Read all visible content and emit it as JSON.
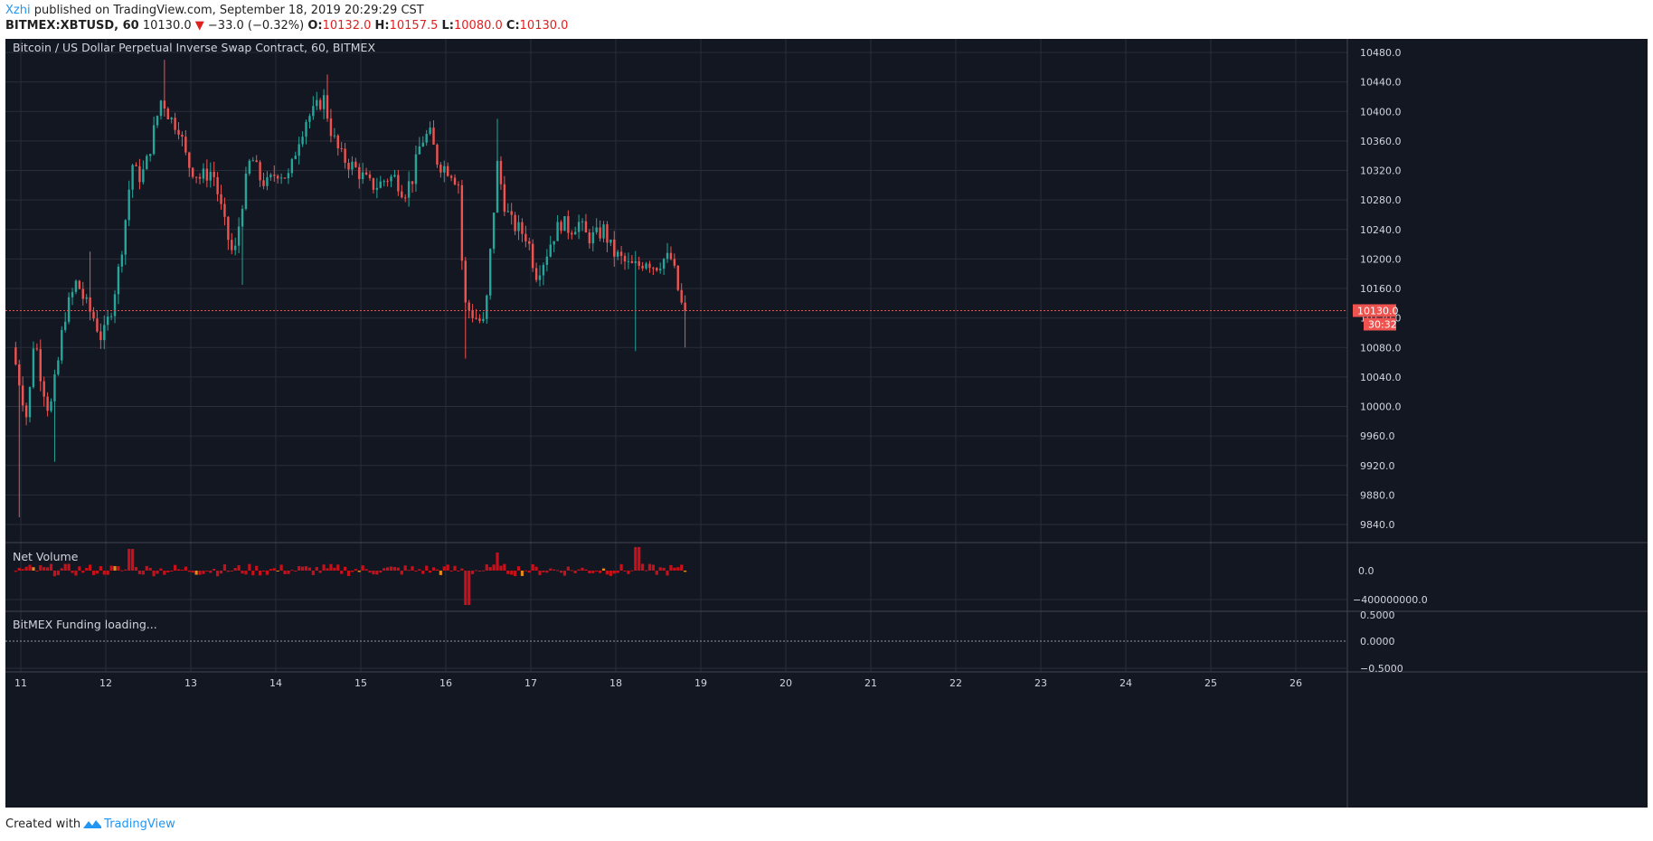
{
  "header": {
    "author": "Xzhi",
    "published_text": "published on TradingView.com, September 18, 2019 20:29:29 CST"
  },
  "ohlc": {
    "symbol": "BITMEX:XBTUSD, 60",
    "last": "10130.0",
    "direction_icon": "triangle-down-icon",
    "change": "−33.0 (−0.32%)",
    "o_label": "O:",
    "o": "10132.0",
    "h_label": "H:",
    "h": "10157.5",
    "l_label": "L:",
    "l": "10080.0",
    "c_label": "C:",
    "c": "10130.0"
  },
  "panes": {
    "main_title": "Bitcoin / US Dollar Perpetual Inverse Swap Contract, 60, BITMEX",
    "volume_title": "Net Volume",
    "funding_title": "BitMEX Funding loading..."
  },
  "price_scale": {
    "labels": [
      "10480.0",
      "10440.0",
      "10400.0",
      "10360.0",
      "10320.0",
      "10280.0",
      "10240.0",
      "10200.0",
      "10160.0",
      "10120.0",
      "10080.0",
      "10040.0",
      "10000.0",
      "9960.0",
      "9920.0",
      "9880.0",
      "9840.0"
    ],
    "last_price_label": "10130.0",
    "countdown_label": "30:32"
  },
  "volume_scale": {
    "labels": [
      "0.0",
      "−400000000.0"
    ]
  },
  "funding_scale": {
    "labels": [
      "0.5000",
      "0.0000",
      "−0.5000"
    ]
  },
  "time_axis": {
    "labels": [
      "11",
      "12",
      "13",
      "14",
      "15",
      "16",
      "17",
      "18",
      "19",
      "20",
      "21",
      "22",
      "23",
      "24",
      "25",
      "26"
    ]
  },
  "colors": {
    "background": "#131722",
    "grid": "#2a2e39",
    "up": "#26a69a",
    "down": "#ef5350",
    "volume": "#c8101b",
    "volume_alt": "#e08a1e",
    "text": "#d1d4dc",
    "last_price": "#ef5350",
    "brand": "#2196f3"
  },
  "chart_data": {
    "type": "candlestick",
    "title": "Bitcoin / US Dollar Perpetual Inverse Swap Contract, 60, BITMEX",
    "interval_minutes": 60,
    "y_range": [
      9810,
      10520
    ],
    "x_range_days": [
      10.94,
      26.1
    ],
    "x_tick_days": [
      11,
      12,
      13,
      14,
      15,
      16,
      17,
      18,
      19,
      20,
      21,
      22,
      23,
      24,
      25,
      26
    ],
    "last_price": 10130.0,
    "anchors": [
      [
        10.94,
        10080
      ],
      [
        11.05,
        10020
      ],
      [
        11.12,
        9980
      ],
      [
        11.2,
        10100
      ],
      [
        11.28,
        10040
      ],
      [
        11.38,
        9990
      ],
      [
        11.48,
        10060
      ],
      [
        11.55,
        10120
      ],
      [
        11.7,
        10170
      ],
      [
        11.8,
        10140
      ],
      [
        11.9,
        10120
      ],
      [
        12.0,
        10090
      ],
      [
        12.1,
        10130
      ],
      [
        12.2,
        10190
      ],
      [
        12.28,
        10260
      ],
      [
        12.35,
        10330
      ],
      [
        12.42,
        10310
      ],
      [
        12.5,
        10320
      ],
      [
        12.6,
        10370
      ],
      [
        12.7,
        10420
      ],
      [
        12.8,
        10390
      ],
      [
        12.9,
        10380
      ],
      [
        13.0,
        10330
      ],
      [
        13.15,
        10310
      ],
      [
        13.3,
        10320
      ],
      [
        13.45,
        10240
      ],
      [
        13.55,
        10200
      ],
      [
        13.65,
        10280
      ],
      [
        13.75,
        10340
      ],
      [
        13.85,
        10310
      ],
      [
        13.95,
        10300
      ],
      [
        14.05,
        10320
      ],
      [
        14.2,
        10310
      ],
      [
        14.3,
        10360
      ],
      [
        14.4,
        10390
      ],
      [
        14.5,
        10400
      ],
      [
        14.6,
        10420
      ],
      [
        14.7,
        10370
      ],
      [
        14.8,
        10340
      ],
      [
        14.9,
        10330
      ],
      [
        15.0,
        10320
      ],
      [
        15.15,
        10300
      ],
      [
        15.25,
        10300
      ],
      [
        15.35,
        10310
      ],
      [
        15.45,
        10310
      ],
      [
        15.55,
        10290
      ],
      [
        15.65,
        10310
      ],
      [
        15.75,
        10360
      ],
      [
        15.85,
        10370
      ],
      [
        15.95,
        10330
      ],
      [
        16.1,
        10320
      ],
      [
        16.2,
        10300
      ],
      [
        16.25,
        10140
      ],
      [
        16.4,
        10120
      ],
      [
        16.5,
        10110
      ],
      [
        16.58,
        10230
      ],
      [
        16.65,
        10330
      ],
      [
        16.72,
        10280
      ],
      [
        16.8,
        10250
      ],
      [
        16.9,
        10240
      ],
      [
        17.0,
        10230
      ],
      [
        17.1,
        10180
      ],
      [
        17.2,
        10200
      ],
      [
        17.3,
        10230
      ],
      [
        17.4,
        10250
      ],
      [
        17.5,
        10240
      ],
      [
        17.6,
        10250
      ],
      [
        17.7,
        10230
      ],
      [
        17.8,
        10230
      ],
      [
        17.9,
        10240
      ],
      [
        18.0,
        10210
      ],
      [
        18.1,
        10200
      ],
      [
        18.2,
        10190
      ],
      [
        18.3,
        10190
      ],
      [
        18.4,
        10200
      ],
      [
        18.5,
        10190
      ],
      [
        18.6,
        10200
      ],
      [
        18.7,
        10200
      ],
      [
        18.75,
        10170
      ],
      [
        18.83,
        10130
      ]
    ],
    "net_volume_range": [
      -600000000,
      250000000
    ]
  }
}
